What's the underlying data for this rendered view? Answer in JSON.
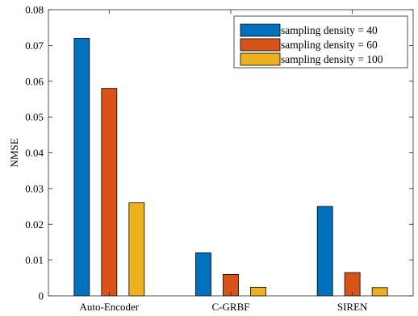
{
  "chart_data": {
    "type": "bar",
    "title": "",
    "xlabel": "",
    "ylabel": "NMSE",
    "categories": [
      "Auto-Encoder",
      "C-GRBF",
      "SIREN"
    ],
    "series": [
      {
        "name": "sampling density = 40",
        "color": "#0072BD",
        "values": [
          0.072,
          0.012,
          0.025
        ]
      },
      {
        "name": "sampling density = 60",
        "color": "#D95319",
        "values": [
          0.058,
          0.006,
          0.0065
        ]
      },
      {
        "name": "sampling density = 100",
        "color": "#EDB120",
        "values": [
          0.026,
          0.0024,
          0.0023
        ]
      }
    ],
    "ylim": [
      0,
      0.08
    ],
    "yticks": [
      "0",
      "0.01",
      "0.02",
      "0.03",
      "0.04",
      "0.05",
      "0.06",
      "0.07",
      "0.08"
    ],
    "legend_position": "top-right",
    "grid": false
  }
}
